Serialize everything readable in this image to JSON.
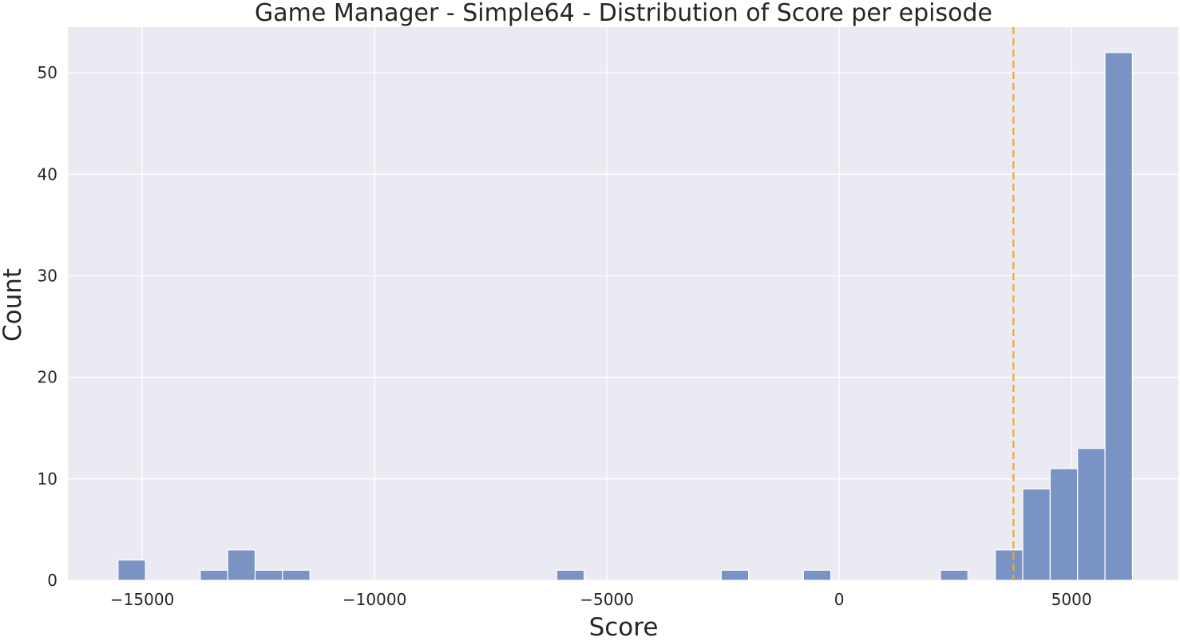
{
  "chart_data": {
    "type": "bar",
    "subtype": "histogram",
    "title": "Game Manager - Simple64 - Distribution of Score per episode",
    "xlabel": "Score",
    "ylabel": "Count",
    "xlim": [
      -16600,
      7300
    ],
    "ylim": [
      0,
      54.5
    ],
    "x_ticks": [
      -15000,
      -10000,
      -5000,
      0,
      5000
    ],
    "x_tick_labels": [
      "−15000",
      "−10000",
      "−5000",
      "0",
      "5000"
    ],
    "y_ticks": [
      0,
      10,
      20,
      30,
      40,
      50
    ],
    "y_tick_labels": [
      "0",
      "10",
      "20",
      "30",
      "40",
      "50"
    ],
    "grid": true,
    "colors": {
      "background": "#eaeaf2",
      "grid": "#ffffff",
      "bar": "#6584bd",
      "bar_edge": "#ffffff",
      "reference_line": "#f5a623"
    },
    "bins": [
      {
        "x0": -15520,
        "x1": -14930,
        "count": 2
      },
      {
        "x0": -13750,
        "x1": -13160,
        "count": 1
      },
      {
        "x0": -13160,
        "x1": -12570,
        "count": 3
      },
      {
        "x0": -12570,
        "x1": -11980,
        "count": 1
      },
      {
        "x0": -11980,
        "x1": -11390,
        "count": 1
      },
      {
        "x0": -6080,
        "x1": -5490,
        "count": 1
      },
      {
        "x0": -2540,
        "x1": -1950,
        "count": 1
      },
      {
        "x0": -770,
        "x1": -180,
        "count": 1
      },
      {
        "x0": 2180,
        "x1": 2770,
        "count": 1
      },
      {
        "x0": 3360,
        "x1": 3950,
        "count": 3
      },
      {
        "x0": 3950,
        "x1": 4540,
        "count": 9
      },
      {
        "x0": 4540,
        "x1": 5130,
        "count": 11
      },
      {
        "x0": 5130,
        "x1": 5720,
        "count": 13
      },
      {
        "x0": 5720,
        "x1": 6310,
        "count": 52
      }
    ],
    "reference_line": {
      "x": 3750,
      "style": "dashed"
    }
  }
}
